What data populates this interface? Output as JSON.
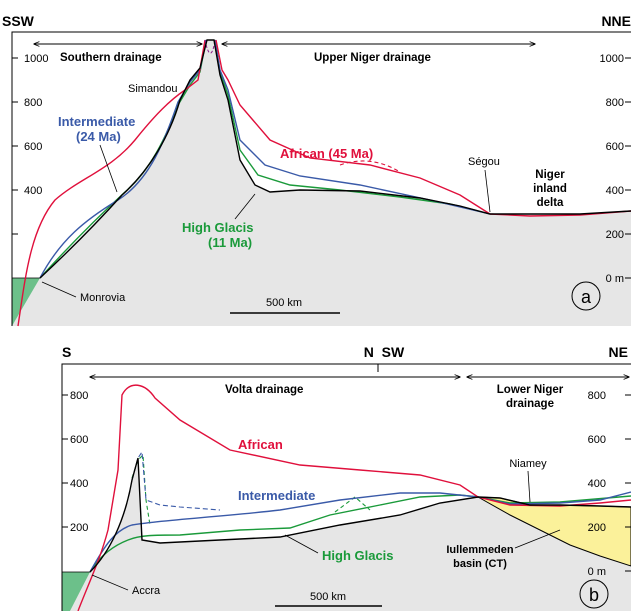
{
  "panel_a": {
    "dir_left": "SSW",
    "dir_right": "NNE",
    "drainage_left": "Southern drainage",
    "drainage_right": "Upper Niger drainage",
    "axis_left_ticks": [
      "1000",
      "800",
      "600",
      "400"
    ],
    "axis_right_ticks": [
      "1000",
      "800",
      "600",
      "400",
      "200",
      "0 m"
    ],
    "places": {
      "simandou": "Simandou",
      "segou": "Ségou",
      "monrovia": "Monrovia",
      "niger_delta": [
        "Niger",
        "inland",
        "delta"
      ]
    },
    "surfaces": {
      "african": "African (45 Ma)",
      "intermediate": [
        "Intermediate",
        "(24 Ma)"
      ],
      "high_glacis": [
        "High Glacis",
        "(11 Ma)"
      ]
    },
    "scale": "500 km",
    "panel_label": "a"
  },
  "panel_b": {
    "dir_left": "S",
    "dir_mid": "N  SW",
    "dir_right": "NE",
    "drainage_left": "Volta drainage",
    "drainage_right": [
      "Lower Niger",
      "drainage"
    ],
    "axis_left_ticks": [
      "800",
      "600",
      "400",
      "200"
    ],
    "axis_right_ticks": [
      "800",
      "600",
      "400",
      "200",
      "0 m"
    ],
    "places": {
      "accra": "Accra",
      "niamey": "Niamey",
      "basin": [
        "Iullemmeden",
        "basin (CT)"
      ]
    },
    "surfaces": {
      "african": "African",
      "intermediate": "Intermediate",
      "high_glacis": "High Glacis"
    },
    "scale": "500 km",
    "panel_label": "b"
  },
  "colors": {
    "african": "#e0103c",
    "intermediate": "#3a5aa8",
    "high_glacis": "#1a9a3a",
    "ground": "#e6e6e6",
    "sea": "#6cc08a",
    "basin": "#fbf19a"
  }
}
